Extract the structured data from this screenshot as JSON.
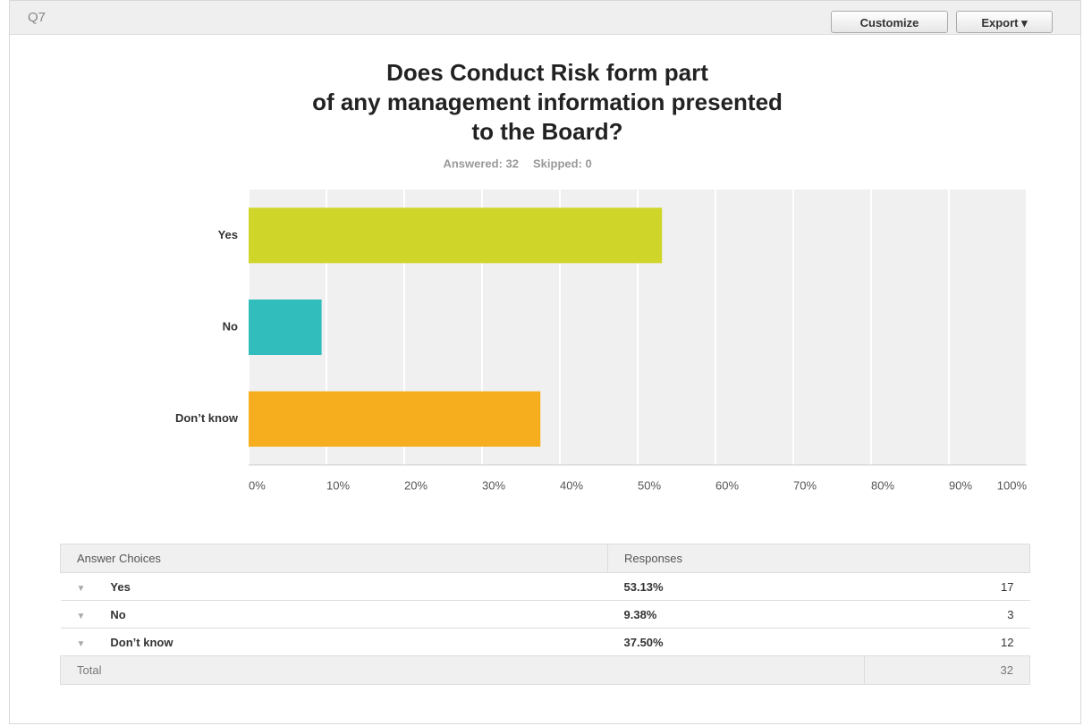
{
  "header": {
    "question": "Q7",
    "buttons": [
      "Customize",
      "Export"
    ]
  },
  "chart_data": {
    "type": "bar",
    "orientation": "horizontal",
    "title": "Does Conduct Risk form part of any management information presented to the Board?",
    "answered": "Answered: 32",
    "skipped": "Skipped: 0",
    "categories": [
      "Yes",
      "No",
      "Don’t know"
    ],
    "values": [
      53.13,
      9.38,
      37.5
    ],
    "colors": [
      "#d0d52a",
      "#32bdbd",
      "#f6ae1f"
    ],
    "xlim": [
      0,
      100
    ],
    "xticks": [
      {
        "value": 0,
        "label": "0%"
      },
      {
        "value": 10,
        "label": "10%"
      },
      {
        "value": 20,
        "label": "20%"
      },
      {
        "value": 30,
        "label": "30%"
      },
      {
        "value": 40,
        "label": "40%"
      },
      {
        "value": 50,
        "label": "50%"
      },
      {
        "value": 60,
        "label": "60%"
      },
      {
        "value": 70,
        "label": "70%"
      },
      {
        "value": 80,
        "label": "80%"
      },
      {
        "value": 90,
        "label": "90%"
      },
      {
        "value": 100,
        "label": "100%"
      }
    ],
    "grid": true
  },
  "table": {
    "header": [
      "Answer Choices",
      "Responses"
    ],
    "rows": [
      [
        "Yes",
        "53.13%",
        "17"
      ],
      [
        "No",
        "9.38%",
        "3"
      ],
      [
        "Don’t know",
        "37.50%",
        "12"
      ]
    ],
    "total": [
      "Total",
      "32"
    ]
  }
}
